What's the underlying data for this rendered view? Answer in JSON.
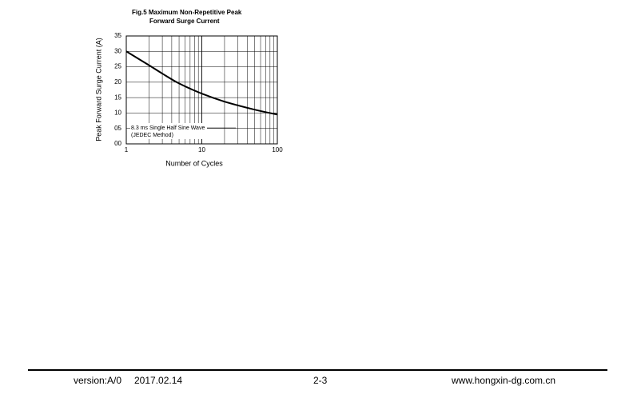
{
  "chart_data": {
    "type": "line",
    "title": [
      "Fig.5  Maximum Non-Repetitive Peak",
      "Forward Surge Current"
    ],
    "x_label": "Number of Cycles",
    "y_label": "Peak Forward Surge Current (A)",
    "annotation": [
      "8.3 ms Single Half Sine Wave",
      "(JEDEC Method)"
    ],
    "x": [
      1,
      2,
      3,
      5,
      10,
      20,
      50,
      100
    ],
    "series": [
      {
        "color": "#000000",
        "values": [
          30,
          25.5,
          22.8,
          19.6,
          16.3,
          13.7,
          11.1,
          9.5
        ]
      }
    ],
    "xlim": [
      1,
      100
    ],
    "xticks": [
      1,
      10,
      100
    ],
    "xlog": true,
    "ylim": [
      0,
      35
    ],
    "yticks": [
      {
        "value": 0,
        "label": "00"
      },
      {
        "value": 5,
        "label": "05"
      },
      10,
      15,
      20,
      25,
      30,
      35
    ],
    "grid": true
  },
  "footer": {
    "version": "version:A/0",
    "date": "2017.02.14",
    "page": "2-3",
    "website": "www.hongxin-dg.com.cn"
  }
}
